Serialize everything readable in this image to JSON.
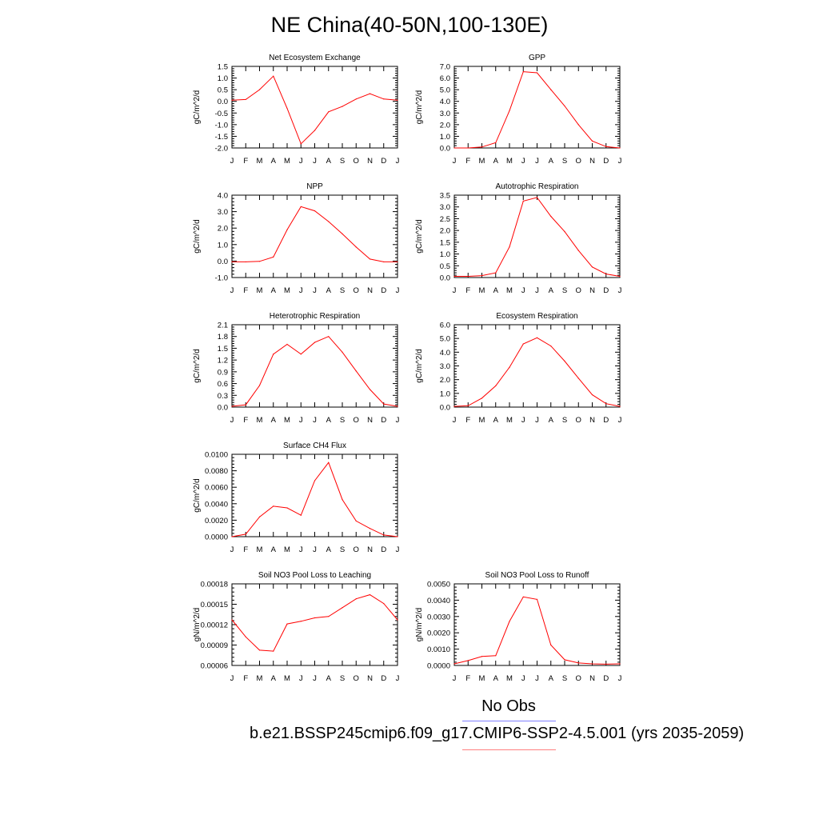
{
  "title": "NE China(40-50N,100-130E)",
  "legend": {
    "label": "No Obs",
    "case": "b.e21.BSSP245cmip6.f09_g17.CMIP6-SSP2-4.5.001 (yrs 2035-2059)",
    "colors": {
      "obs": "#7f7fff",
      "case": "#ff7f7f"
    }
  },
  "colors": {
    "line": "#ff0000",
    "axis": "#000000"
  },
  "months": [
    "J",
    "F",
    "M",
    "A",
    "M",
    "J",
    "J",
    "A",
    "S",
    "O",
    "N",
    "D",
    "J"
  ],
  "chart_data": [
    {
      "type": "line",
      "title": "Net Ecosystem Exchange",
      "ylabel": "gC/m^2/d",
      "ylim": [
        -2.0,
        1.5
      ],
      "yticks": [
        -2.0,
        -1.5,
        -1.0,
        -0.5,
        0.0,
        0.5,
        1.0,
        1.5
      ],
      "yticklabels": [
        "-2.0",
        "-1.5",
        "-1.0",
        "-0.5",
        "0.0",
        "0.5",
        "1.0",
        "1.5"
      ],
      "values": [
        0.05,
        0.08,
        0.5,
        1.08,
        -0.3,
        -1.82,
        -1.25,
        -0.45,
        -0.22,
        0.1,
        0.33,
        0.1,
        0.05
      ]
    },
    {
      "type": "line",
      "title": "GPP",
      "ylabel": "gC/m^2/d",
      "ylim": [
        0,
        7.0
      ],
      "yticks": [
        0,
        1,
        2,
        3,
        4,
        5,
        6,
        7
      ],
      "yticklabels": [
        "0.0",
        "1.0",
        "2.0",
        "3.0",
        "4.0",
        "5.0",
        "6.0",
        "7.0"
      ],
      "values": [
        0.0,
        0.0,
        0.08,
        0.45,
        3.2,
        6.55,
        6.45,
        5.0,
        3.6,
        2.0,
        0.6,
        0.12,
        0.0
      ]
    },
    {
      "type": "line",
      "title": "NPP",
      "ylabel": "gC/m^2/d",
      "ylim": [
        -1.0,
        4.0
      ],
      "yticks": [
        -1,
        0,
        1,
        2,
        3,
        4
      ],
      "yticklabels": [
        "-1.0",
        "0.0",
        "1.0",
        "2.0",
        "3.0",
        "4.0"
      ],
      "values": [
        -0.05,
        -0.05,
        -0.02,
        0.25,
        1.9,
        3.3,
        3.05,
        2.4,
        1.65,
        0.85,
        0.12,
        -0.05,
        -0.05
      ]
    },
    {
      "type": "line",
      "title": "Autotrophic Respiration",
      "ylabel": "gC/m^2/d",
      "ylim": [
        0,
        3.5
      ],
      "yticks": [
        0,
        0.5,
        1,
        1.5,
        2,
        2.5,
        3,
        3.5
      ],
      "yticklabels": [
        "0.0",
        "0.5",
        "1.0",
        "1.5",
        "2.0",
        "2.5",
        "3.0",
        "3.5"
      ],
      "values": [
        0.05,
        0.05,
        0.08,
        0.2,
        1.3,
        3.25,
        3.4,
        2.6,
        1.95,
        1.15,
        0.45,
        0.15,
        0.05
      ]
    },
    {
      "type": "line",
      "title": "Heterotrophic Respiration",
      "ylabel": "gC/m^2/d",
      "ylim": [
        0,
        2.1
      ],
      "yticks": [
        0,
        0.3,
        0.6,
        0.9,
        1.2,
        1.5,
        1.8,
        2.1
      ],
      "yticklabels": [
        "0.0",
        "0.3",
        "0.6",
        "0.9",
        "1.2",
        "1.5",
        "1.8",
        "2.1"
      ],
      "values": [
        0.02,
        0.06,
        0.55,
        1.35,
        1.6,
        1.35,
        1.65,
        1.8,
        1.4,
        0.92,
        0.45,
        0.08,
        0.02
      ]
    },
    {
      "type": "line",
      "title": "Ecosystem Respiration",
      "ylabel": "gC/m^2/d",
      "ylim": [
        0,
        6.0
      ],
      "yticks": [
        0,
        1,
        2,
        3,
        4,
        5,
        6
      ],
      "yticklabels": [
        "0.0",
        "1.0",
        "2.0",
        "3.0",
        "4.0",
        "5.0",
        "6.0"
      ],
      "values": [
        0.05,
        0.1,
        0.65,
        1.55,
        2.9,
        4.6,
        5.05,
        4.45,
        3.35,
        2.1,
        0.9,
        0.25,
        0.05
      ]
    },
    {
      "type": "line",
      "title": "Surface CH4 Flux",
      "ylabel": "gC/m^2/d",
      "ylim": [
        0,
        0.01
      ],
      "yticks": [
        0,
        0.002,
        0.004,
        0.006,
        0.008,
        0.01
      ],
      "yticklabels": [
        "0.0000",
        "0.0020",
        "0.0040",
        "0.0060",
        "0.0080",
        "0.0100"
      ],
      "values": [
        0.0,
        0.0003,
        0.0024,
        0.0037,
        0.0035,
        0.0026,
        0.0068,
        0.009,
        0.0045,
        0.0019,
        0.001,
        0.0002,
        0.0
      ]
    },
    {
      "type": "line",
      "title": "Soil NO3 Pool Loss to Leaching",
      "ylabel": "gN/m^2/d",
      "ylim": [
        6e-05,
        0.00018
      ],
      "yticks": [
        6e-05,
        9e-05,
        0.00012,
        0.00015,
        0.00018
      ],
      "yticklabels": [
        "0.00006",
        "0.00009",
        "0.00012",
        "0.00015",
        "0.00018"
      ],
      "values": [
        0.000127,
        0.000102,
        8.25e-05,
        8.1e-05,
        0.000121,
        0.000125,
        0.00013,
        0.000132,
        0.000145,
        0.000158,
        0.000164,
        0.000151,
        0.000127
      ]
    },
    {
      "type": "line",
      "title": "Soil NO3 Pool Loss to Runoff",
      "ylabel": "gN/m^2/d",
      "ylim": [
        0,
        0.005
      ],
      "yticks": [
        0,
        0.001,
        0.002,
        0.003,
        0.004,
        0.005
      ],
      "yticklabels": [
        "0.0000",
        "0.0010",
        "0.0020",
        "0.0030",
        "0.0040",
        "0.0050"
      ],
      "values": [
        0.0001,
        0.0003,
        0.00055,
        0.0006,
        0.0027,
        0.0042,
        0.00405,
        0.00125,
        0.00035,
        0.00015,
        0.0001,
        8e-05,
        0.0001
      ]
    }
  ]
}
